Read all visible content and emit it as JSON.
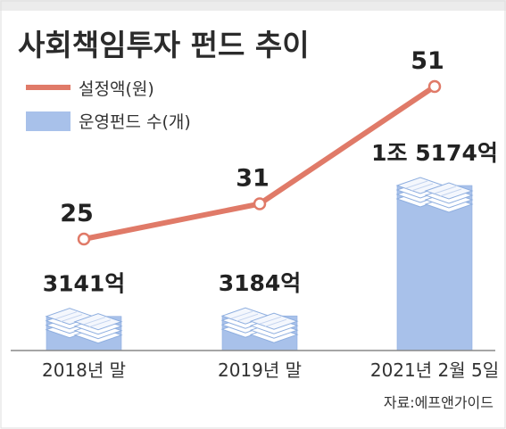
{
  "title": "사회책임투자 펀드 추이",
  "source": "자료:에프앤가이드",
  "colors": {
    "line": "#e07a68",
    "bar": "#a8c1ea",
    "bar_edge": "#8eaedf",
    "background_top": "#ececec",
    "frame": "#dedede",
    "baseline": "#888888"
  },
  "chart_data": {
    "type": "bar",
    "categories": [
      "2018년 말",
      "2019년 말",
      "2021년 2월 5일"
    ],
    "series": [
      {
        "name": "설정액(원)",
        "chart_type": "line",
        "values": [
          25,
          31,
          51
        ],
        "labels": [
          "25",
          "31",
          "51"
        ],
        "color": "#e07a68"
      },
      {
        "name": "운영펀드 수(개)",
        "chart_type": "bar",
        "values": [
          3141,
          3184,
          15174
        ],
        "labels": [
          "3141억",
          "3184억",
          "1조 5174억"
        ],
        "color": "#a8c1ea"
      }
    ],
    "legend_position": "top-left",
    "grid": false
  }
}
